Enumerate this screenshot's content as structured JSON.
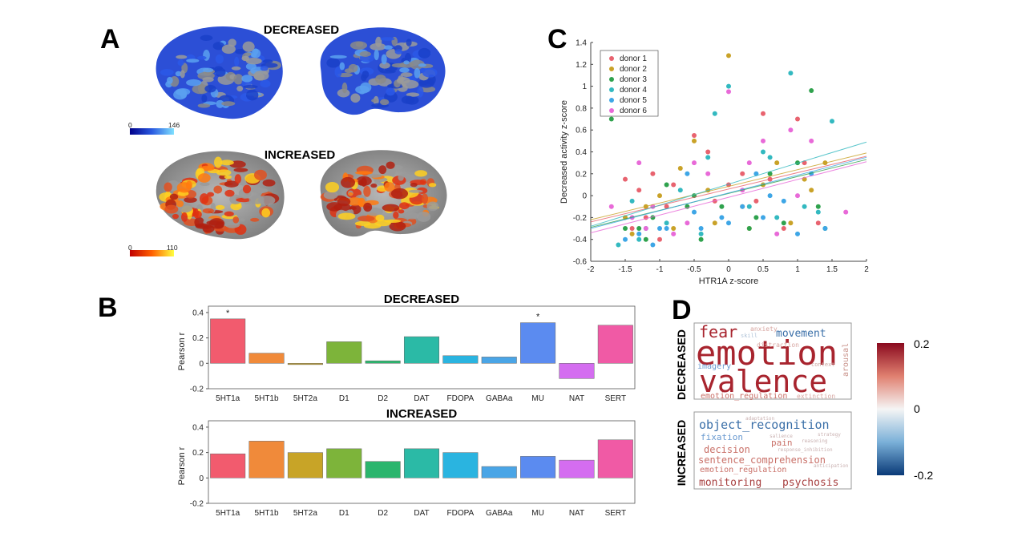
{
  "panels": {
    "A": {
      "letter": "A",
      "top_title": "DECREASED",
      "bottom_title": "INCREASED",
      "top_colorbar": {
        "min_label": "0",
        "max_label": "146"
      },
      "bottom_colorbar": {
        "min_label": "0",
        "max_label": "110"
      }
    },
    "B": {
      "letter": "B"
    },
    "C": {
      "letter": "C"
    },
    "D": {
      "letter": "D",
      "row_labels": [
        "DECREASED",
        "INCREASED"
      ],
      "colorbar": {
        "ticks": [
          "0.2",
          "0",
          "-0.2"
        ],
        "range": [
          -0.2,
          0.2
        ]
      }
    }
  },
  "chart_data": [
    {
      "id": "B-decreased",
      "type": "bar",
      "title": "DECREASED",
      "ylabel": "Pearson r",
      "ylim": [
        -0.2,
        0.45
      ],
      "yticks": [
        "0.4",
        "0.2",
        "0",
        "-0.2"
      ],
      "categories": [
        "5HT1a",
        "5HT1b",
        "5HT2a",
        "D1",
        "D2",
        "DAT",
        "FDOPA",
        "GABAa",
        "MU",
        "NAT",
        "SERT"
      ],
      "values": [
        0.35,
        0.08,
        -0.01,
        0.17,
        0.02,
        0.21,
        0.06,
        0.05,
        0.32,
        -0.12,
        0.3
      ],
      "significant": [
        "*",
        "",
        "",
        "",
        "",
        "",
        "",
        "",
        "*",
        "",
        ""
      ],
      "colors": [
        "#f25b6e",
        "#f08a3a",
        "#c8a427",
        "#7db43a",
        "#2bb56d",
        "#2bbaa6",
        "#2ab4e0",
        "#4aa5e6",
        "#5b8bf0",
        "#d46df0",
        "#f05aa5"
      ]
    },
    {
      "id": "B-increased",
      "type": "bar",
      "title": "INCREASED",
      "ylabel": "Pearson r",
      "ylim": [
        -0.2,
        0.45
      ],
      "yticks": [
        "0.4",
        "0.2",
        "0",
        "-0.2"
      ],
      "categories": [
        "5HT1a",
        "5HT1b",
        "5HT2a",
        "D1",
        "D2",
        "DAT",
        "FDOPA",
        "GABAa",
        "MU",
        "NAT",
        "SERT"
      ],
      "values": [
        0.19,
        0.29,
        0.2,
        0.23,
        0.13,
        0.23,
        0.2,
        0.09,
        0.17,
        0.14,
        0.3
      ],
      "colors": [
        "#f25b6e",
        "#f08a3a",
        "#c8a427",
        "#7db43a",
        "#2bb56d",
        "#2bbaa6",
        "#2ab4e0",
        "#4aa5e6",
        "#5b8bf0",
        "#d46df0",
        "#f05aa5"
      ]
    },
    {
      "id": "C-scatter",
      "type": "scatter",
      "xlabel": "HTR1A z-score",
      "ylabel": "Decreased activity z-score",
      "xlim": [
        -2,
        2
      ],
      "ylim": [
        -0.6,
        1.4
      ],
      "xticks": [
        "-2",
        "-1.5",
        "-1",
        "-0.5",
        "0",
        "0.5",
        "1",
        "1.5",
        "2"
      ],
      "yticks": [
        "1.4",
        "1.2",
        "1",
        "0.8",
        "0.6",
        "0.4",
        "0.2",
        "0",
        "-0.2",
        "-0.4",
        "-0.6"
      ],
      "legend_placement": "top-left",
      "series": [
        {
          "name": "donor 1",
          "color": "#e8636f",
          "fit": [
            -0.24,
            0.36
          ],
          "points": [
            [
              -1.5,
              0.15
            ],
            [
              -1.3,
              0.05
            ],
            [
              -1.2,
              -0.2
            ],
            [
              -1.0,
              -0.4
            ],
            [
              -0.8,
              0.1
            ],
            [
              -0.5,
              0.55
            ],
            [
              -0.3,
              0.4
            ],
            [
              0.0,
              0.1
            ],
            [
              0.2,
              0.2
            ],
            [
              0.5,
              0.75
            ],
            [
              0.6,
              0.15
            ],
            [
              0.8,
              -0.3
            ],
            [
              1.0,
              0.7
            ],
            [
              1.1,
              0.3
            ],
            [
              1.3,
              -0.25
            ],
            [
              -1.4,
              -0.3
            ],
            [
              -0.9,
              -0.1
            ],
            [
              -0.2,
              -0.05
            ],
            [
              0.4,
              -0.05
            ],
            [
              -1.1,
              0.2
            ]
          ]
        },
        {
          "name": "donor 2",
          "color": "#c9a228",
          "fit": [
            -0.22,
            0.39
          ],
          "points": [
            [
              0.0,
              1.28
            ],
            [
              -1.4,
              -0.35
            ],
            [
              -1.2,
              -0.1
            ],
            [
              -1.0,
              0.0
            ],
            [
              -0.7,
              0.25
            ],
            [
              -0.5,
              0.5
            ],
            [
              -0.2,
              -0.25
            ],
            [
              0.2,
              -0.1
            ],
            [
              0.5,
              0.1
            ],
            [
              0.7,
              0.3
            ],
            [
              0.9,
              -0.25
            ],
            [
              1.2,
              0.05
            ],
            [
              1.4,
              0.3
            ],
            [
              -1.5,
              -0.2
            ],
            [
              -0.8,
              -0.3
            ],
            [
              0.3,
              -0.3
            ],
            [
              1.1,
              0.15
            ],
            [
              -0.3,
              0.05
            ]
          ]
        },
        {
          "name": "donor 3",
          "color": "#2fa24d",
          "fit": [
            -0.29,
            0.33
          ],
          "points": [
            [
              -1.7,
              0.7
            ],
            [
              -1.5,
              -0.3
            ],
            [
              -1.3,
              -0.3
            ],
            [
              -1.1,
              -0.2
            ],
            [
              -0.9,
              0.1
            ],
            [
              -0.6,
              -0.1
            ],
            [
              -0.4,
              -0.4
            ],
            [
              -0.1,
              -0.1
            ],
            [
              0.3,
              -0.3
            ],
            [
              0.6,
              0.2
            ],
            [
              0.8,
              -0.25
            ],
            [
              1.0,
              0.3
            ],
            [
              1.2,
              0.96
            ],
            [
              1.3,
              -0.1
            ],
            [
              -1.2,
              -0.4
            ],
            [
              -0.5,
              0.0
            ],
            [
              0.4,
              -0.2
            ],
            [
              1.4,
              -0.3
            ]
          ]
        },
        {
          "name": "donor 4",
          "color": "#33b9c0",
          "fit": [
            -0.28,
            0.49
          ],
          "points": [
            [
              -1.6,
              -0.45
            ],
            [
              -1.4,
              -0.05
            ],
            [
              -1.2,
              -0.3
            ],
            [
              -0.9,
              -0.25
            ],
            [
              -0.7,
              0.05
            ],
            [
              -0.4,
              -0.35
            ],
            [
              -0.2,
              0.75
            ],
            [
              0.0,
              1.0
            ],
            [
              0.3,
              -0.1
            ],
            [
              0.5,
              0.4
            ],
            [
              0.7,
              -0.2
            ],
            [
              0.9,
              1.12
            ],
            [
              1.1,
              -0.1
            ],
            [
              1.5,
              0.68
            ],
            [
              -1.3,
              -0.4
            ],
            [
              -0.3,
              0.35
            ],
            [
              0.6,
              0.35
            ],
            [
              1.3,
              -0.15
            ]
          ]
        },
        {
          "name": "donor 5",
          "color": "#3ea6e6",
          "fit": [
            -0.3,
            0.35
          ],
          "points": [
            [
              -1.5,
              -0.4
            ],
            [
              -1.3,
              -0.35
            ],
            [
              -1.1,
              -0.45
            ],
            [
              -0.9,
              -0.3
            ],
            [
              -0.6,
              0.2
            ],
            [
              -0.4,
              -0.3
            ],
            [
              -0.1,
              -0.2
            ],
            [
              0.0,
              -0.25
            ],
            [
              0.2,
              -0.1
            ],
            [
              0.4,
              0.2
            ],
            [
              0.6,
              0.0
            ],
            [
              0.8,
              -0.05
            ],
            [
              1.0,
              -0.35
            ],
            [
              1.2,
              0.2
            ],
            [
              1.4,
              -0.3
            ],
            [
              -1.0,
              -0.3
            ],
            [
              -0.5,
              -0.15
            ],
            [
              0.5,
              -0.2
            ]
          ]
        },
        {
          "name": "donor 6",
          "color": "#e86ad8",
          "fit": [
            -0.34,
            0.31
          ],
          "points": [
            [
              -1.7,
              -0.1
            ],
            [
              -1.4,
              -0.2
            ],
            [
              -1.3,
              0.3
            ],
            [
              -1.1,
              -0.1
            ],
            [
              -0.8,
              -0.35
            ],
            [
              -0.5,
              0.3
            ],
            [
              -0.3,
              0.2
            ],
            [
              0.0,
              0.95
            ],
            [
              0.2,
              0.05
            ],
            [
              0.5,
              0.5
            ],
            [
              0.7,
              -0.35
            ],
            [
              0.9,
              0.6
            ],
            [
              1.2,
              0.5
            ],
            [
              1.7,
              -0.15
            ],
            [
              -1.2,
              -0.3
            ],
            [
              -0.6,
              -0.25
            ],
            [
              0.3,
              0.3
            ],
            [
              1.0,
              0.0
            ]
          ]
        }
      ]
    }
  ],
  "wordclouds": {
    "decreased": [
      {
        "text": "fear",
        "color": "#a8242e",
        "size": 20
      },
      {
        "text": "movement",
        "color": "#3a6fa8",
        "size": 13
      },
      {
        "text": "emotion",
        "color": "#a8242e",
        "size": 42
      },
      {
        "text": "valence",
        "color": "#a8242e",
        "size": 38
      },
      {
        "text": "anxiety",
        "color": "#d7a5a0",
        "size": 8
      },
      {
        "text": "skill",
        "color": "#b0c4d8",
        "size": 7
      },
      {
        "text": "imagery",
        "color": "#6a9ad0",
        "size": 10
      },
      {
        "text": "distraction",
        "color": "#d7a5a0",
        "size": 8
      },
      {
        "text": "context",
        "color": "#c9a5a0",
        "size": 7
      },
      {
        "text": "arousal",
        "color": "#c9928a",
        "size": 10
      },
      {
        "text": "emotion_regulation",
        "color": "#c97068",
        "size": 10
      },
      {
        "text": "extinction",
        "color": "#d7a5a0",
        "size": 8
      }
    ],
    "increased": [
      {
        "text": "object_recognition",
        "color": "#3a6fa8",
        "size": 15
      },
      {
        "text": "fixation",
        "color": "#6a9ad0",
        "size": 11
      },
      {
        "text": "pain",
        "color": "#c97068",
        "size": 11
      },
      {
        "text": "decision",
        "color": "#c97068",
        "size": 12
      },
      {
        "text": "sentence_comprehension",
        "color": "#c97068",
        "size": 12
      },
      {
        "text": "emotion_regulation",
        "color": "#c97068",
        "size": 10
      },
      {
        "text": "monitoring",
        "color": "#a84040",
        "size": 13
      },
      {
        "text": "psychosis",
        "color": "#a84040",
        "size": 13
      },
      {
        "text": "salience",
        "color": "#c9b0b0",
        "size": 6
      },
      {
        "text": "adaptation",
        "color": "#c9b0b0",
        "size": 6
      },
      {
        "text": "strategy",
        "color": "#c9b0b0",
        "size": 6
      },
      {
        "text": "reasoning",
        "color": "#c9b0b0",
        "size": 6
      },
      {
        "text": "response_inhibition",
        "color": "#c9b0b0",
        "size": 6
      },
      {
        "text": "anticipation",
        "color": "#c9b0b0",
        "size": 6
      }
    ]
  }
}
